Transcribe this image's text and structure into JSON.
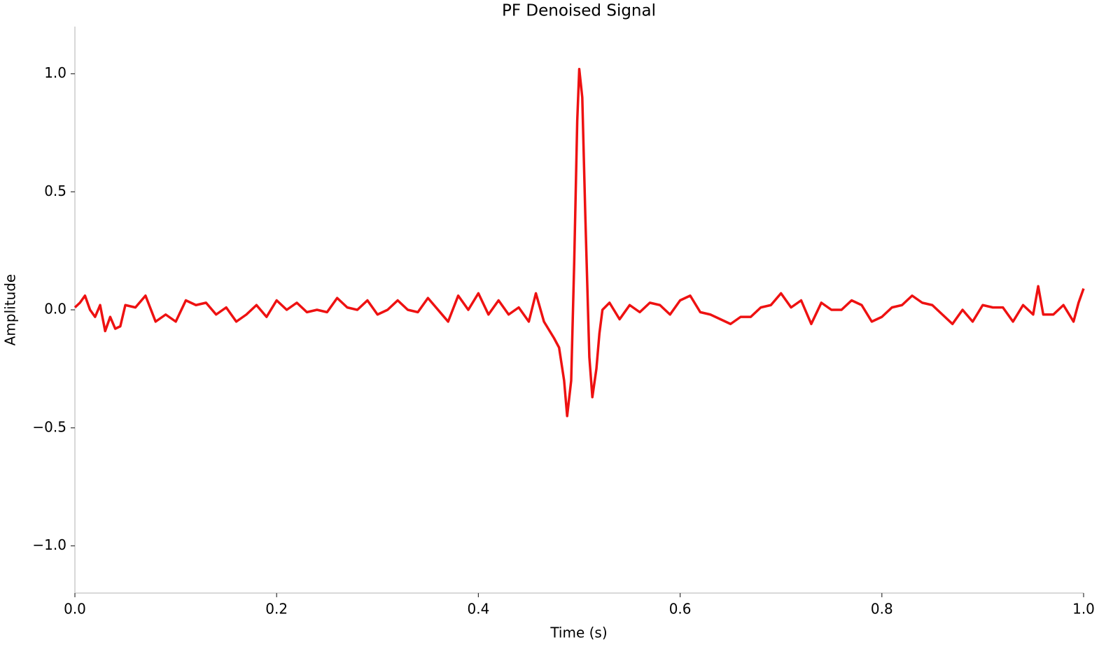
{
  "chart_data": {
    "type": "line",
    "title": "PF Denoised Signal",
    "x_label": "Time (s)",
    "y_label": "Amplitude",
    "x": [
      0,
      0.005,
      0.01,
      0.015,
      0.02,
      0.025,
      0.03,
      0.035,
      0.04,
      0.045,
      0.05,
      0.06,
      0.07,
      0.08,
      0.09,
      0.1,
      0.11,
      0.12,
      0.13,
      0.14,
      0.15,
      0.16,
      0.17,
      0.18,
      0.19,
      0.2,
      0.21,
      0.22,
      0.23,
      0.24,
      0.25,
      0.26,
      0.27,
      0.28,
      0.29,
      0.3,
      0.31,
      0.32,
      0.33,
      0.34,
      0.35,
      0.36,
      0.37,
      0.38,
      0.39,
      0.4,
      0.41,
      0.42,
      0.43,
      0.44,
      0.45,
      0.457,
      0.465,
      0.475,
      0.48,
      0.485,
      0.488,
      0.492,
      0.495,
      0.498,
      0.5,
      0.503,
      0.506,
      0.51,
      0.513,
      0.517,
      0.52,
      0.523,
      0.53,
      0.54,
      0.55,
      0.56,
      0.57,
      0.58,
      0.59,
      0.6,
      0.61,
      0.62,
      0.63,
      0.64,
      0.65,
      0.66,
      0.67,
      0.68,
      0.69,
      0.7,
      0.71,
      0.72,
      0.73,
      0.74,
      0.75,
      0.76,
      0.77,
      0.78,
      0.79,
      0.8,
      0.81,
      0.82,
      0.83,
      0.84,
      0.85,
      0.86,
      0.87,
      0.88,
      0.89,
      0.9,
      0.91,
      0.92,
      0.93,
      0.94,
      0.95,
      0.955,
      0.96,
      0.97,
      0.98,
      0.99,
      0.995,
      1.0
    ],
    "series": [
      {
        "name": "PF Denoised Signal",
        "color": "#ee1111",
        "values": [
          0.01,
          0.03,
          0.06,
          0.0,
          -0.03,
          0.02,
          -0.09,
          -0.03,
          -0.08,
          -0.07,
          0.02,
          0.01,
          0.06,
          -0.05,
          -0.02,
          -0.05,
          0.04,
          0.02,
          0.03,
          -0.02,
          0.01,
          -0.05,
          -0.02,
          0.02,
          -0.03,
          0.04,
          0.0,
          0.03,
          -0.01,
          0.0,
          -0.01,
          0.05,
          0.01,
          0.0,
          0.04,
          -0.02,
          0.0,
          0.04,
          0.0,
          -0.01,
          0.05,
          0.0,
          -0.05,
          0.06,
          0.0,
          0.07,
          -0.02,
          0.04,
          -0.02,
          0.01,
          -0.05,
          0.07,
          -0.05,
          -0.12,
          -0.16,
          -0.3,
          -0.45,
          -0.3,
          0.2,
          0.8,
          1.02,
          0.9,
          0.4,
          -0.2,
          -0.37,
          -0.25,
          -0.1,
          0.0,
          0.03,
          -0.04,
          0.02,
          -0.01,
          0.03,
          0.02,
          -0.02,
          0.04,
          0.06,
          -0.01,
          -0.02,
          -0.04,
          -0.06,
          -0.03,
          -0.03,
          0.01,
          0.02,
          0.07,
          0.01,
          0.04,
          -0.06,
          0.03,
          0.0,
          0.0,
          0.04,
          0.02,
          -0.05,
          -0.03,
          0.01,
          0.02,
          0.06,
          0.03,
          0.02,
          -0.02,
          -0.06,
          0.0,
          -0.05,
          0.02,
          0.01,
          0.01,
          -0.05,
          0.02,
          -0.02,
          0.1,
          -0.02,
          -0.02,
          0.02,
          -0.05,
          0.03,
          0.09
        ]
      }
    ],
    "xlim": [
      0,
      1
    ],
    "xticks": [
      {
        "value": 0,
        "label": "0.0"
      },
      0.2,
      0.4,
      0.6,
      0.8,
      {
        "value": 1,
        "label": "1.0"
      }
    ],
    "ylim": [
      -1.2,
      1.2
    ],
    "yticks": [
      {
        "value": -1,
        "label": "−1.0"
      },
      {
        "value": -0.5,
        "label": "−0.5"
      },
      {
        "value": 0,
        "label": "0.0"
      },
      0.5,
      {
        "value": 1,
        "label": "1.0"
      }
    ],
    "grid": false
  }
}
